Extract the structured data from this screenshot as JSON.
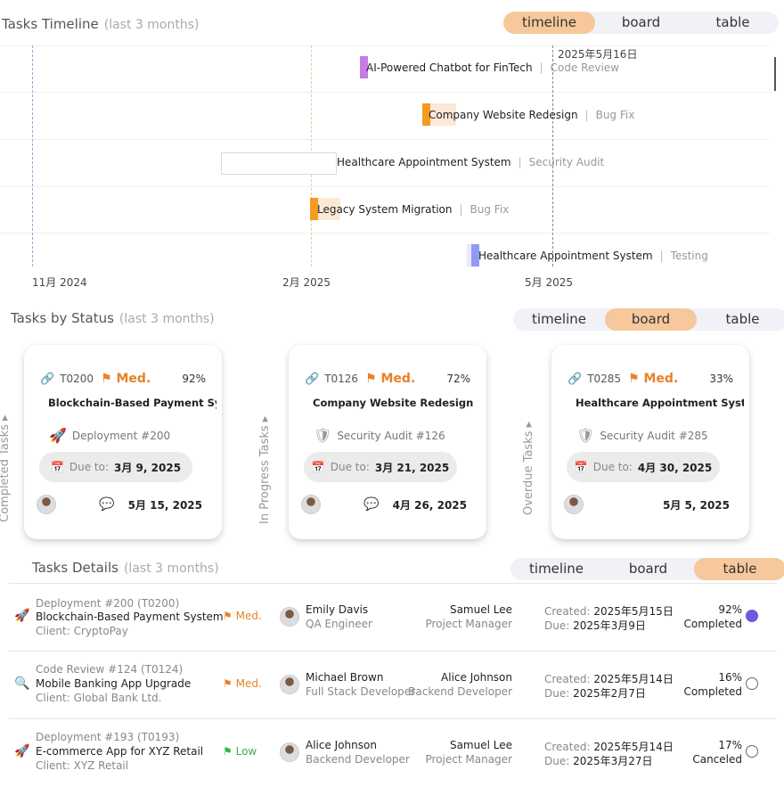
{
  "timeline": {
    "title": "Tasks Timeline",
    "subtitle": "(last 3 months)",
    "tabs": [
      "timeline",
      "board",
      "table"
    ],
    "active_tab": "timeline",
    "today_label": "2025年5月16日",
    "axis": [
      "11月 2024",
      "2月 2025",
      "5月 2025"
    ],
    "rows": [
      {
        "name": "AI-Powered Chatbot for FinTech",
        "type": "Code Review",
        "color": "#c77be3"
      },
      {
        "name": "Company Website Redesign",
        "type": "Bug Fix",
        "color": "#f59a23"
      },
      {
        "name": "Healthcare Appointment System",
        "type": "Security Audit",
        "color": "#d7dae8"
      },
      {
        "name": "Legacy System Migration",
        "type": "Bug Fix",
        "color": "#f59a23"
      },
      {
        "name": "Healthcare Appointment System",
        "type": "Testing",
        "color": "#8f9bf2"
      }
    ]
  },
  "board": {
    "title": "Tasks by Status",
    "subtitle": "(last 3 months)",
    "tabs": [
      "timeline",
      "board",
      "table"
    ],
    "active_tab": "board",
    "columns": [
      "Completed Tasks",
      "In Progress Tasks",
      "Overdue Tasks"
    ],
    "due_label": "Due to:",
    "cards": [
      {
        "id": "T0200",
        "priority": "Med.",
        "progress": "92%",
        "title": "Blockchain-Based Payment System",
        "type": "Deployment #200",
        "type_icon": "rocket-icon",
        "due": "3月 9, 2025",
        "date": "5月 15, 2025"
      },
      {
        "id": "T0126",
        "priority": "Med.",
        "progress": "72%",
        "title": "Company Website Redesign",
        "type": "Security Audit #126",
        "type_icon": "shield-icon",
        "due": "3月 21, 2025",
        "date": "4月 26, 2025"
      },
      {
        "id": "T0285",
        "priority": "Med.",
        "progress": "33%",
        "title": "Healthcare Appointment System",
        "type": "Security Audit #285",
        "type_icon": "shield-icon",
        "due": "4月 30, 2025",
        "date": "5月 5, 2025"
      }
    ]
  },
  "details": {
    "title": "Tasks Details",
    "subtitle": "(last 3 months)",
    "tabs": [
      "timeline",
      "board",
      "table"
    ],
    "active_tab": "table",
    "created_label": "Created:",
    "due_label": "Due:",
    "rows": [
      {
        "type": "Deployment #200",
        "id": "(T0200)",
        "title": "Blockchain-Based Payment System",
        "client": "Client: CryptoPay",
        "icon": "rocket-icon",
        "priority": "Med.",
        "priority_level": "medium",
        "assignee": "Emily Davis",
        "assignee_role": "QA Engineer",
        "manager": "Samuel Lee",
        "manager_role": "Project Manager",
        "created": "2025年5月15日",
        "due": "2025年3月9日",
        "progress": "92%",
        "status": "Completed",
        "selected": true
      },
      {
        "type": "Code Review #124",
        "id": "(T0124)",
        "title": "Mobile Banking App Upgrade",
        "client": "Client: Global Bank Ltd.",
        "icon": "code-review-icon",
        "priority": "Med.",
        "priority_level": "medium",
        "assignee": "Michael Brown",
        "assignee_role": "Full Stack Developer",
        "manager": "Alice Johnson",
        "manager_role": "Backend Developer",
        "created": "2025年5月14日",
        "due": "2025年2月7日",
        "progress": "16%",
        "status": "Completed",
        "selected": false
      },
      {
        "type": "Deployment #193",
        "id": "(T0193)",
        "title": "E-commerce App for XYZ Retail",
        "client": "Client: XYZ Retail",
        "icon": "rocket-icon",
        "priority": "Low",
        "priority_level": "low",
        "assignee": "Alice Johnson",
        "assignee_role": "Backend Developer",
        "manager": "Samuel Lee",
        "manager_role": "Project Manager",
        "created": "2025年5月14日",
        "due": "2025年3月27日",
        "progress": "17%",
        "status": "Canceled",
        "selected": false
      }
    ]
  }
}
